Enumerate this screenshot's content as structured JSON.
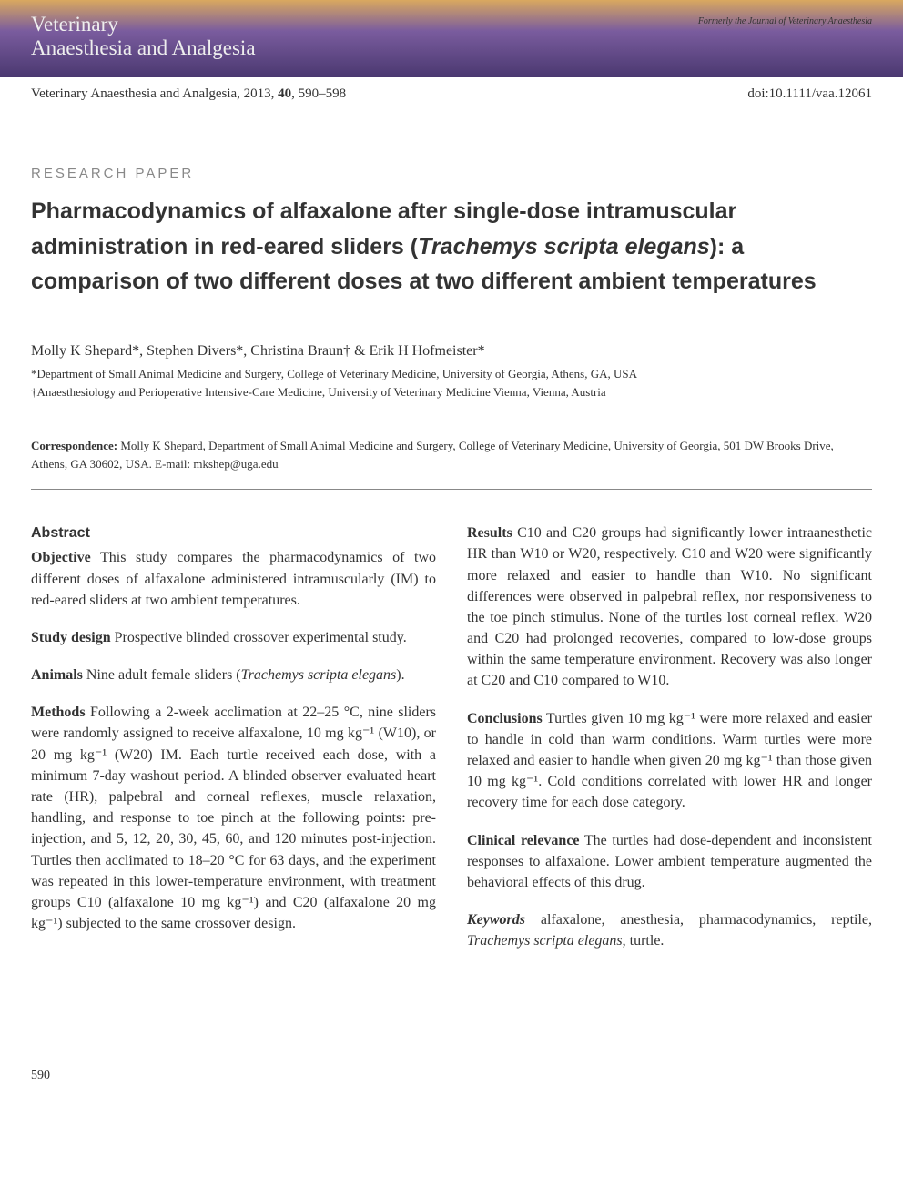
{
  "header": {
    "brand_line1": "Veterinary",
    "brand_line2": "Anaesthesia and Analgesia",
    "former": "Formerly the Journal of Veterinary Anaesthesia"
  },
  "citation": {
    "journal": "Veterinary Anaesthesia and Analgesia, 2013, ",
    "vol": "40",
    "pages": ", 590–598",
    "doi": "doi:10.1111/vaa.12061"
  },
  "paper_type": "RESEARCH PAPER",
  "title_pre": "Pharmacodynamics of alfaxalone after single-dose intramuscular administration in red-eared sliders (",
  "title_ital": "Trachemys scripta elegans",
  "title_post": "): a comparison of two different doses at two different ambient temperatures",
  "authors": "Molly K Shepard*, Stephen Divers*, Christina Braun† & Erik H Hofmeister*",
  "affil1": "*Department of Small Animal Medicine and Surgery, College of Veterinary Medicine, University of Georgia, Athens, GA, USA",
  "affil2": "†Anaesthesiology and Perioperative Intensive-Care Medicine, University of Veterinary Medicine Vienna, Vienna, Austria",
  "corr_label": "Correspondence: ",
  "corr_text": "Molly K Shepard, Department of Small Animal Medicine and Surgery, College of Veterinary Medicine, University of Georgia, 501 DW Brooks Drive, Athens, GA 30602, USA. E-mail: mkshep@uga.edu",
  "abs_heading": "Abstract",
  "objective_label": "Objective",
  "objective_text": " This study compares the pharmacodynamics of two different doses of alfaxalone administered intramuscularly (IM) to red-eared sliders at two ambient temperatures.",
  "design_label": "Study design",
  "design_text": " Prospective blinded crossover experimental study.",
  "animals_label": "Animals",
  "animals_text_pre": " Nine adult female sliders (",
  "animals_ital": "Trachemys scripta elegans",
  "animals_text_post": ").",
  "methods_label": "Methods",
  "methods_text": " Following a 2-week acclimation at 22–25 °C, nine sliders were randomly assigned to receive alfaxalone, 10 mg kg⁻¹ (W10), or 20 mg kg⁻¹ (W20) IM. Each turtle received each dose, with a minimum 7-day washout period. A blinded observer evaluated heart rate (HR), palpebral and corneal reflexes, muscle relaxation, handling, and response to toe pinch at the following points: pre-injection, and 5, 12, 20, 30, 45, 60, and 120 minutes post-injection. Turtles then acclimated to 18–20 °C for 63 days, and the experiment was repeated in this lower-temperature environment, with treatment groups C10 (alfaxalone 10 mg kg⁻¹) and C20 (alfaxalone 20 mg kg⁻¹) subjected to the same crossover design.",
  "results_label": "Results",
  "results_text": " C10 and C20 groups had significantly lower intraanesthetic HR than W10 or W20, respectively. C10 and W20 were significantly more relaxed and easier to handle than W10. No significant differences were observed in palpebral reflex, nor responsiveness to the toe pinch stimulus. None of the turtles lost corneal reflex. W20 and C20 had prolonged recoveries, compared to low-dose groups within the same temperature environment. Recovery was also longer at C20 and C10 compared to W10.",
  "conclusions_label": "Conclusions",
  "conclusions_text": " Turtles given 10 mg kg⁻¹ were more relaxed and easier to handle in cold than warm conditions. Warm turtles were more relaxed and easier to handle when given 20 mg kg⁻¹ than those given 10 mg kg⁻¹. Cold conditions correlated with lower HR and longer recovery time for each dose category.",
  "clinrel_label": "Clinical relevance",
  "clinrel_text": " The turtles had dose-dependent and inconsistent responses to alfaxalone. Lower ambient temperature augmented the behavioral effects of this drug.",
  "keywords_label": "Keywords",
  "keywords_text_pre": " alfaxalone, anesthesia, pharmacodynamics, reptile, ",
  "keywords_ital": "Trachemys scripta elegans",
  "keywords_text_post": ", turtle.",
  "pagenum": "590"
}
